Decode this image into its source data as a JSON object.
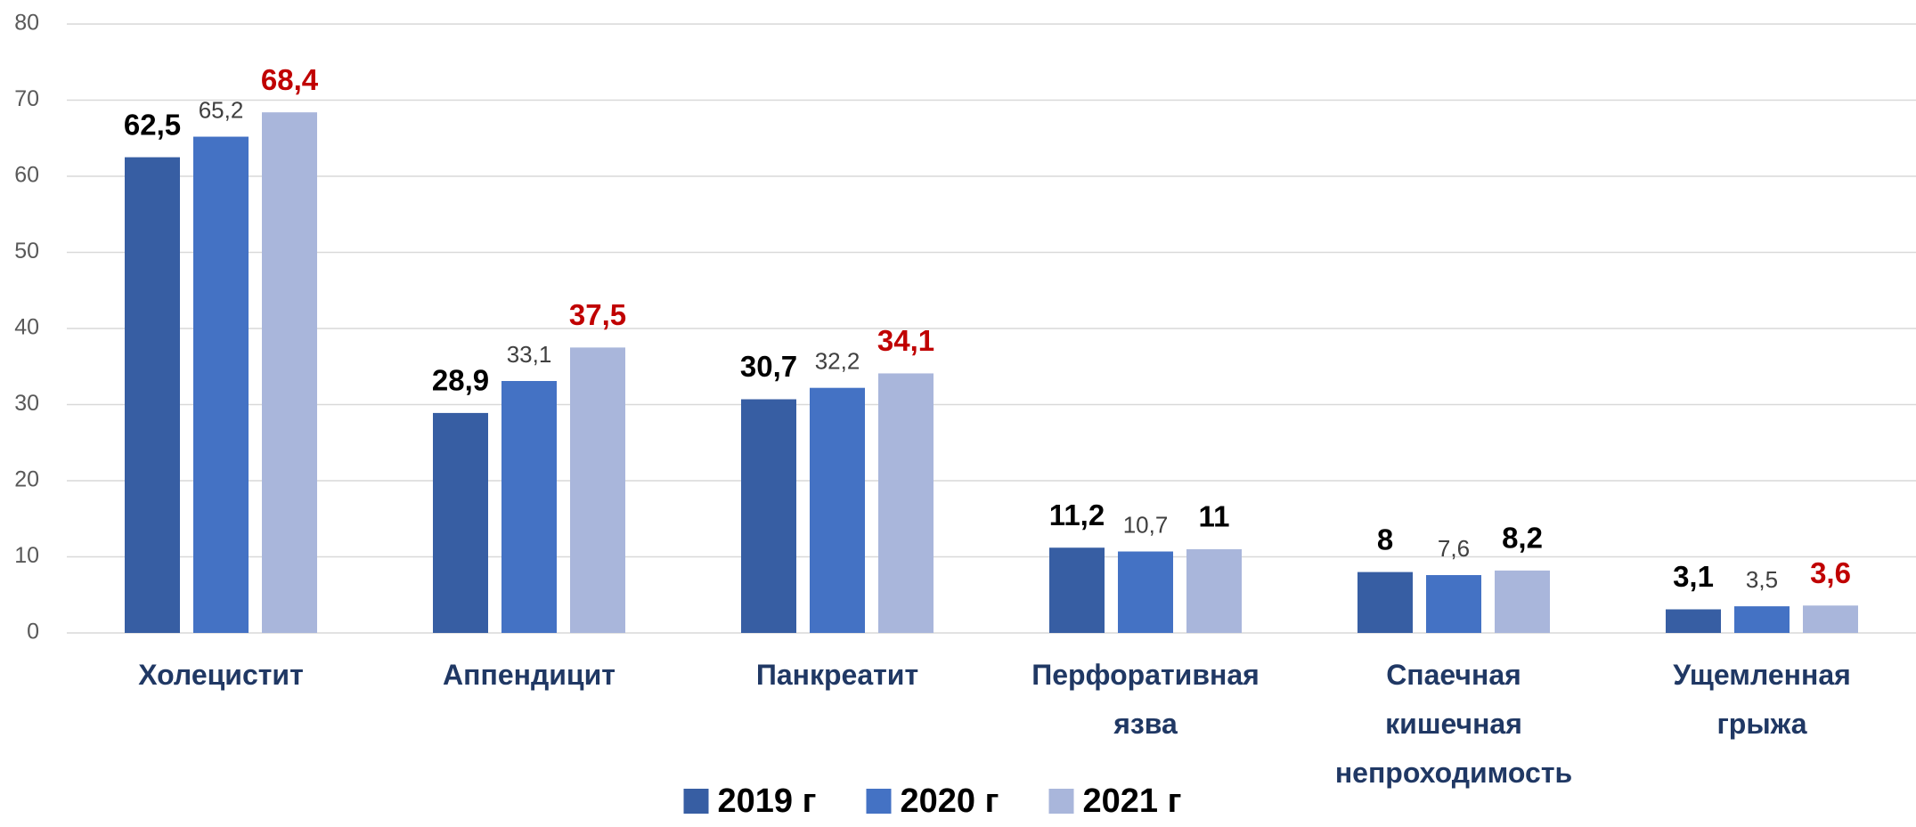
{
  "chart_data": {
    "type": "bar",
    "categories": [
      "Холецистит",
      "Аппендицит",
      "Панкреатит",
      "Перфоративная язва",
      "Спаечная кишечная непроходимость",
      "Ущемленная грыжа"
    ],
    "series": [
      {
        "name": "2019 г",
        "color": "#375ea3",
        "values": [
          62.5,
          28.9,
          30.7,
          11.2,
          8,
          3.1
        ],
        "value_labels": [
          "62,5",
          "28,9",
          "30,7",
          "11,2",
          "8",
          "3,1"
        ],
        "label_colors": [
          "#000000",
          "#000000",
          "#000000",
          "#000000",
          "#000000",
          "#000000"
        ]
      },
      {
        "name": "2020 г",
        "color": "#4472c4",
        "values": [
          65.2,
          33.1,
          32.2,
          10.7,
          7.6,
          3.5
        ],
        "value_labels": [
          "65,2",
          "33,1",
          "32,2",
          "10,7",
          "7,6",
          "3,5"
        ],
        "label_colors": [
          "#404040",
          "#404040",
          "#404040",
          "#404040",
          "#404040",
          "#404040"
        ]
      },
      {
        "name": "2021 г",
        "color": "#a9b6db",
        "values": [
          68.4,
          37.5,
          34.1,
          11,
          8.2,
          3.6
        ],
        "value_labels": [
          "68,4",
          "37,5",
          "34,1",
          "11",
          "8,2",
          "3,6"
        ],
        "label_colors": [
          "#c00000",
          "#c00000",
          "#c00000",
          "#000000",
          "#000000",
          "#c00000"
        ]
      }
    ],
    "ylim": [
      0,
      80
    ],
    "yticks": [
      0,
      10,
      20,
      30,
      40,
      50,
      60,
      70,
      80
    ],
    "grid": true,
    "legend": "bottom"
  }
}
